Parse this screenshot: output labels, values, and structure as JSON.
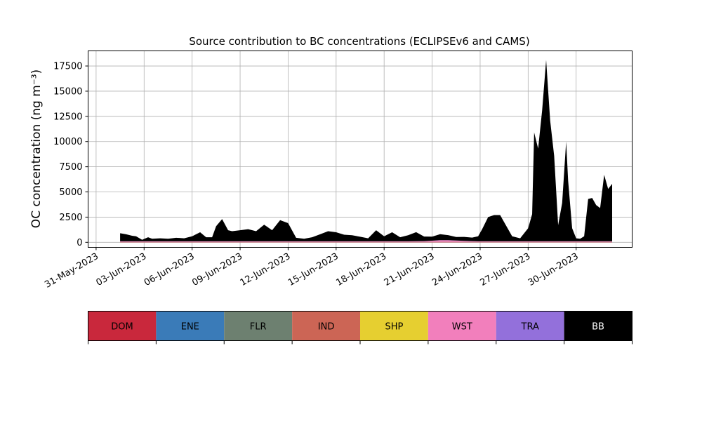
{
  "chart_data": {
    "type": "area",
    "stacked": true,
    "title": "Source contribution to BC concentrations (ECLIPSEv6 and CAMS)",
    "ylabel": "OC concentration (ng m⁻³)",
    "ylim": [
      -500,
      19000
    ],
    "yticks": [
      0,
      2500,
      5000,
      7500,
      10000,
      12500,
      15000,
      17500
    ],
    "xlim": [
      "2023-05-30T12:00",
      "2023-07-03T12:00"
    ],
    "xticks": [
      "2023-05-31",
      "2023-06-03",
      "2023-06-06",
      "2023-06-09",
      "2023-06-12",
      "2023-06-15",
      "2023-06-18",
      "2023-06-21",
      "2023-06-24",
      "2023-06-27",
      "2023-06-30"
    ],
    "xtick_labels": [
      "31-May-2023",
      "03-Jun-2023",
      "06-Jun-2023",
      "09-Jun-2023",
      "12-Jun-2023",
      "15-Jun-2023",
      "18-Jun-2023",
      "21-Jun-2023",
      "24-Jun-2023",
      "27-Jun-2023",
      "30-Jun-2023"
    ],
    "grid": true,
    "x": [
      "2023-06-01T12:00",
      "2023-06-01T21:00",
      "2023-06-02T06:00",
      "2023-06-02T12:00",
      "2023-06-02T21:00",
      "2023-06-03T06:00",
      "2023-06-03T12:00",
      "2023-06-04T00:00",
      "2023-06-04T12:00",
      "2023-06-05T00:00",
      "2023-06-05T12:00",
      "2023-06-06T00:00",
      "2023-06-06T12:00",
      "2023-06-06T21:00",
      "2023-06-07T06:00",
      "2023-06-07T12:00",
      "2023-06-07T21:00",
      "2023-06-08T06:00",
      "2023-06-08T12:00",
      "2023-06-09T00:00",
      "2023-06-09T12:00",
      "2023-06-10T00:00",
      "2023-06-10T12:00",
      "2023-06-11T00:00",
      "2023-06-11T12:00",
      "2023-06-12T00:00",
      "2023-06-12T12:00",
      "2023-06-13T00:00",
      "2023-06-13T12:00",
      "2023-06-14T00:00",
      "2023-06-14T12:00",
      "2023-06-15T00:00",
      "2023-06-15T12:00",
      "2023-06-16T00:00",
      "2023-06-16T12:00",
      "2023-06-17T00:00",
      "2023-06-17T12:00",
      "2023-06-18T00:00",
      "2023-06-18T12:00",
      "2023-06-19T00:00",
      "2023-06-19T12:00",
      "2023-06-20T00:00",
      "2023-06-20T12:00",
      "2023-06-21T00:00",
      "2023-06-21T12:00",
      "2023-06-22T00:00",
      "2023-06-22T12:00",
      "2023-06-23T00:00",
      "2023-06-23T12:00",
      "2023-06-23T21:00",
      "2023-06-24T03:00",
      "2023-06-24T12:00",
      "2023-06-24T21:00",
      "2023-06-25T06:00",
      "2023-06-25T12:00",
      "2023-06-26T00:00",
      "2023-06-26T12:00",
      "2023-06-27T00:00",
      "2023-06-27T06:00",
      "2023-06-27T09:00",
      "2023-06-27T15:00",
      "2023-06-27T21:00",
      "2023-06-28T03:00",
      "2023-06-28T09:00",
      "2023-06-28T15:00",
      "2023-06-28T21:00",
      "2023-06-29T03:00",
      "2023-06-29T09:00",
      "2023-06-29T12:00",
      "2023-06-29T18:00",
      "2023-06-30T00:00",
      "2023-06-30T06:00",
      "2023-06-30T12:00",
      "2023-06-30T18:00",
      "2023-07-01T00:00",
      "2023-07-01T06:00",
      "2023-07-01T12:00",
      "2023-07-01T18:00",
      "2023-07-02T00:00",
      "2023-07-02T06:00"
    ],
    "series": [
      {
        "name": "DOM",
        "color": "#c9283c",
        "values": [
          20,
          20,
          20,
          20,
          20,
          20,
          20,
          20,
          20,
          20,
          20,
          20,
          20,
          20,
          20,
          20,
          20,
          20,
          20,
          20,
          20,
          20,
          20,
          20,
          20,
          20,
          20,
          20,
          20,
          20,
          20,
          20,
          20,
          20,
          20,
          20,
          20,
          20,
          20,
          20,
          20,
          20,
          20,
          20,
          20,
          20,
          20,
          20,
          20,
          20,
          20,
          20,
          20,
          20,
          20,
          20,
          20,
          20,
          20,
          20,
          20,
          20,
          20,
          20,
          20,
          20,
          20,
          20,
          20,
          20,
          20,
          20,
          20,
          20,
          20,
          20,
          20,
          20,
          20,
          20
        ]
      },
      {
        "name": "ENE",
        "color": "#3a7bb8",
        "values": [
          10,
          10,
          10,
          10,
          10,
          10,
          10,
          10,
          10,
          10,
          10,
          10,
          10,
          10,
          10,
          10,
          10,
          10,
          10,
          10,
          10,
          10,
          10,
          10,
          10,
          10,
          10,
          10,
          10,
          10,
          10,
          10,
          10,
          10,
          10,
          10,
          10,
          10,
          10,
          10,
          10,
          10,
          10,
          10,
          10,
          10,
          10,
          10,
          10,
          10,
          10,
          10,
          10,
          10,
          10,
          10,
          10,
          10,
          10,
          10,
          10,
          10,
          10,
          10,
          10,
          10,
          10,
          10,
          10,
          10,
          10,
          10,
          10,
          10,
          10,
          10,
          10,
          10,
          10,
          10
        ]
      },
      {
        "name": "FLR",
        "color": "#6d8070",
        "values": [
          5,
          5,
          5,
          5,
          5,
          5,
          5,
          5,
          5,
          5,
          5,
          5,
          5,
          5,
          5,
          5,
          5,
          5,
          5,
          5,
          5,
          5,
          5,
          5,
          5,
          5,
          5,
          5,
          5,
          5,
          5,
          5,
          5,
          5,
          5,
          5,
          5,
          5,
          5,
          5,
          5,
          5,
          5,
          5,
          5,
          5,
          5,
          5,
          5,
          5,
          5,
          5,
          5,
          5,
          5,
          5,
          5,
          5,
          5,
          5,
          5,
          5,
          5,
          5,
          5,
          5,
          5,
          5,
          5,
          5,
          5,
          5,
          5,
          5,
          5,
          5,
          5,
          5,
          5,
          5
        ]
      },
      {
        "name": "IND",
        "color": "#cc6555",
        "values": [
          10,
          10,
          10,
          10,
          10,
          10,
          10,
          10,
          10,
          10,
          10,
          10,
          10,
          10,
          10,
          10,
          10,
          10,
          10,
          10,
          10,
          10,
          10,
          10,
          10,
          10,
          10,
          10,
          10,
          10,
          10,
          10,
          10,
          10,
          10,
          10,
          10,
          10,
          10,
          10,
          10,
          10,
          10,
          10,
          10,
          10,
          10,
          10,
          10,
          10,
          10,
          10,
          10,
          10,
          10,
          10,
          10,
          10,
          10,
          10,
          10,
          10,
          10,
          10,
          10,
          10,
          10,
          10,
          10,
          10,
          10,
          10,
          10,
          10,
          10,
          10,
          10,
          10,
          10,
          10
        ]
      },
      {
        "name": "SHP",
        "color": "#e6cf30",
        "values": [
          5,
          5,
          5,
          5,
          5,
          5,
          5,
          5,
          5,
          5,
          5,
          5,
          5,
          5,
          5,
          5,
          5,
          5,
          5,
          5,
          5,
          5,
          5,
          5,
          5,
          5,
          5,
          5,
          5,
          5,
          5,
          5,
          5,
          5,
          5,
          5,
          5,
          5,
          5,
          5,
          5,
          5,
          5,
          5,
          5,
          5,
          5,
          5,
          5,
          5,
          5,
          5,
          5,
          5,
          5,
          5,
          5,
          5,
          5,
          5,
          5,
          5,
          5,
          5,
          5,
          5,
          5,
          5,
          5,
          5,
          5,
          5,
          5,
          5,
          5,
          5,
          5,
          5,
          5,
          5
        ]
      },
      {
        "name": "WST",
        "color": "#f27fbc",
        "values": [
          40,
          40,
          40,
          40,
          40,
          40,
          40,
          40,
          40,
          40,
          40,
          40,
          40,
          40,
          40,
          40,
          40,
          40,
          40,
          40,
          40,
          40,
          40,
          40,
          40,
          40,
          40,
          40,
          40,
          40,
          40,
          40,
          40,
          40,
          40,
          40,
          40,
          40,
          40,
          40,
          40,
          50,
          60,
          100,
          150,
          150,
          120,
          80,
          60,
          40,
          40,
          40,
          40,
          40,
          40,
          40,
          40,
          40,
          40,
          40,
          40,
          40,
          40,
          40,
          40,
          40,
          40,
          40,
          40,
          40,
          40,
          40,
          40,
          40,
          40,
          40,
          40,
          40,
          40,
          40
        ]
      },
      {
        "name": "TRA",
        "color": "#9370db",
        "values": [
          10,
          10,
          10,
          10,
          10,
          10,
          10,
          10,
          10,
          10,
          10,
          10,
          10,
          10,
          10,
          10,
          10,
          10,
          10,
          10,
          10,
          10,
          10,
          10,
          10,
          10,
          10,
          10,
          10,
          10,
          10,
          10,
          10,
          10,
          10,
          10,
          10,
          10,
          10,
          10,
          10,
          10,
          10,
          10,
          10,
          10,
          10,
          10,
          10,
          10,
          10,
          10,
          10,
          10,
          10,
          10,
          10,
          10,
          10,
          10,
          10,
          10,
          10,
          10,
          10,
          10,
          10,
          10,
          10,
          10,
          10,
          10,
          10,
          10,
          10,
          10,
          10,
          10,
          10,
          10
        ]
      },
      {
        "name": "BB",
        "color": "#000000",
        "values": [
          800,
          700,
          550,
          500,
          150,
          400,
          250,
          300,
          250,
          350,
          300,
          500,
          900,
          400,
          400,
          1500,
          2200,
          1100,
          1000,
          1100,
          1200,
          1000,
          1650,
          1100,
          2100,
          1800,
          350,
          250,
          400,
          700,
          1000,
          900,
          650,
          600,
          450,
          300,
          1100,
          500,
          900,
          400,
          600,
          900,
          450,
          400,
          600,
          500,
          350,
          400,
          350,
          500,
          1200,
          2400,
          2600,
          2600,
          1900,
          500,
          300,
          1300,
          2700,
          10800,
          9200,
          13000,
          18000,
          12000,
          8500,
          1600,
          3800,
          9900,
          6000,
          1300,
          300,
          250,
          500,
          4200,
          4300,
          3600,
          3300,
          6600,
          5200,
          5700
        ]
      }
    ]
  },
  "legend": {
    "items": [
      {
        "label": "DOM",
        "color": "#c9283c",
        "text_color": "#000000"
      },
      {
        "label": "ENE",
        "color": "#3a7bb8",
        "text_color": "#000000"
      },
      {
        "label": "FLR",
        "color": "#6d8070",
        "text_color": "#000000"
      },
      {
        "label": "IND",
        "color": "#cc6555",
        "text_color": "#000000"
      },
      {
        "label": "SHP",
        "color": "#e6cf30",
        "text_color": "#000000"
      },
      {
        "label": "WST",
        "color": "#f27fbc",
        "text_color": "#000000"
      },
      {
        "label": "TRA",
        "color": "#9370db",
        "text_color": "#000000"
      },
      {
        "label": "BB",
        "color": "#000000",
        "text_color": "#ffffff"
      }
    ]
  }
}
